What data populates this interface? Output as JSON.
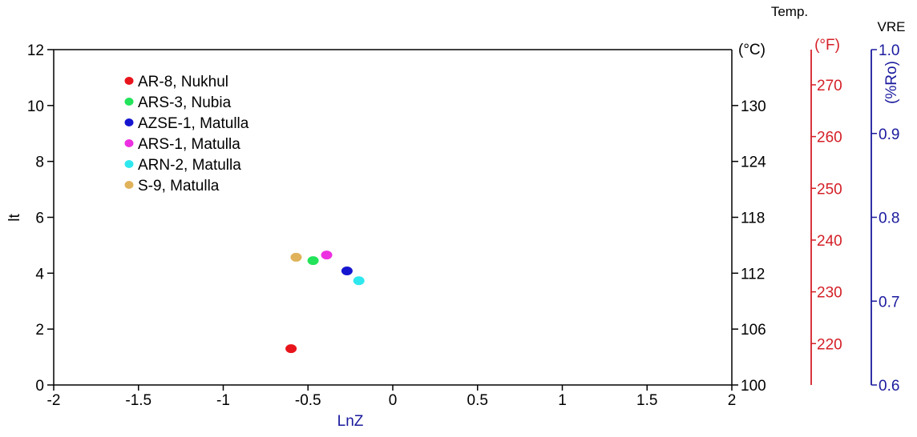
{
  "chart_data": {
    "type": "scatter",
    "title": "",
    "xlabel": "LnZ",
    "ylabel": "lt",
    "xlim": [
      -2,
      2
    ],
    "ylim": [
      0,
      12
    ],
    "x_ticks": [
      "-2",
      "-1.5",
      "-1",
      "-0.5",
      "0",
      "0.5",
      "1",
      "1.5",
      "2"
    ],
    "y_ticks": [
      "0",
      "2",
      "4",
      "6",
      "8",
      "10",
      "12"
    ],
    "grid": false,
    "legend_position": "top-left",
    "series": [
      {
        "name": "AR-8, Nukhul",
        "color": "#e8141b",
        "points": [
          {
            "x": -0.6,
            "y": 1.3
          }
        ]
      },
      {
        "name": "ARS-3, Nubia",
        "color": "#22e35a",
        "points": [
          {
            "x": -0.47,
            "y": 4.45
          }
        ]
      },
      {
        "name": "AZSE-1, Matulla",
        "color": "#1515d0",
        "points": [
          {
            "x": -0.27,
            "y": 4.08
          }
        ]
      },
      {
        "name": "ARS-1, Matulla",
        "color": "#ec2fe0",
        "points": [
          {
            "x": -0.39,
            "y": 4.65
          }
        ]
      },
      {
        "name": "ARN-2, Matulla",
        "color": "#2ee8ee",
        "points": [
          {
            "x": -0.2,
            "y": 3.73
          }
        ]
      },
      {
        "name": "S-9, Matulla",
        "color": "#e0b25a",
        "points": [
          {
            "x": -0.57,
            "y": 4.57
          }
        ]
      }
    ],
    "secondary_axes": {
      "header_temp": "Temp.",
      "header_vre": "VRE",
      "celsius": {
        "unit": "(°C)",
        "color": "#000000",
        "range": [
          100,
          136
        ],
        "ticks": [
          {
            "label": "100",
            "value": 100
          },
          {
            "label": "106",
            "value": 106
          },
          {
            "label": "112",
            "value": 112
          },
          {
            "label": "118",
            "value": 118
          },
          {
            "label": "124",
            "value": 124
          },
          {
            "label": "130",
            "value": 130
          }
        ]
      },
      "fahrenheit": {
        "unit": "(°F)",
        "color": "#d42027",
        "range": [
          212,
          276.8
        ],
        "ticks": [
          {
            "label": "220",
            "value": 220
          },
          {
            "label": "230",
            "value": 230
          },
          {
            "label": "240",
            "value": 240
          },
          {
            "label": "250",
            "value": 250
          },
          {
            "label": "260",
            "value": 260
          },
          {
            "label": "270",
            "value": 270
          }
        ]
      },
      "vre": {
        "unit": "(%Ro)",
        "color": "#1a1a9e",
        "range": [
          0.6,
          1.0
        ],
        "ticks": [
          {
            "label": "0.6",
            "value": 0.6
          },
          {
            "label": "0.7",
            "value": 0.7
          },
          {
            "label": "0.8",
            "value": 0.8
          },
          {
            "label": "0.9",
            "value": 0.9
          },
          {
            "label": "1.0",
            "value": 1.0
          }
        ]
      }
    }
  }
}
